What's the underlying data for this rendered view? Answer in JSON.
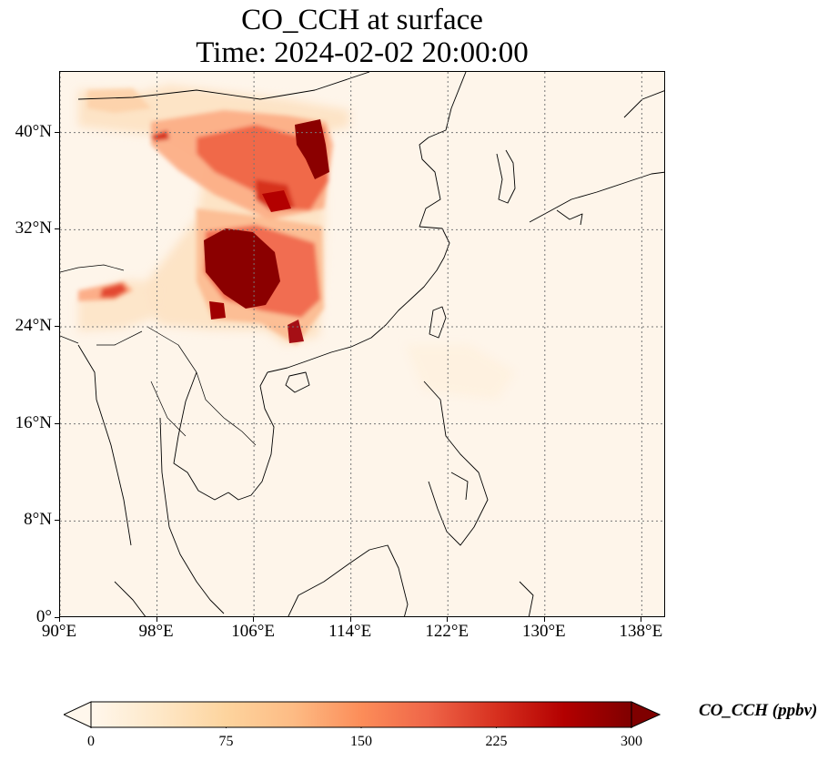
{
  "title": "CO_CCH at surface",
  "subtitle": "Time: 2024-02-02 20:00:00",
  "map": {
    "extent": {
      "lon_min": 90,
      "lon_max": 140,
      "lat_min": 0,
      "lat_max": 45
    },
    "gridlines": "dotted",
    "lat_ticks": [
      {
        "value": 0,
        "label": "0°"
      },
      {
        "value": 8,
        "label": "8°N"
      },
      {
        "value": 16,
        "label": "16°N"
      },
      {
        "value": 24,
        "label": "24°N"
      },
      {
        "value": 32,
        "label": "32°N"
      },
      {
        "value": 40,
        "label": "40°N"
      }
    ],
    "lon_ticks": [
      {
        "value": 90,
        "label": "90°E"
      },
      {
        "value": 98,
        "label": "98°E"
      },
      {
        "value": 106,
        "label": "106°E"
      },
      {
        "value": 114,
        "label": "114°E"
      },
      {
        "value": 122,
        "label": "122°E"
      },
      {
        "value": 130,
        "label": "130°E"
      },
      {
        "value": 138,
        "label": "138°E"
      }
    ]
  },
  "colorbar": {
    "label": "CO_CCH (ppbv)",
    "colormap": "OrRd",
    "min": 0,
    "max": 300,
    "extend": "both",
    "ticks": [
      "0",
      "75",
      "150",
      "225",
      "300"
    ],
    "colors": [
      "#fff7ec",
      "#fee8c8",
      "#fdd49e",
      "#fdbb84",
      "#fc8d59",
      "#ef6548",
      "#d7301f",
      "#b30000",
      "#7f0000"
    ]
  }
}
